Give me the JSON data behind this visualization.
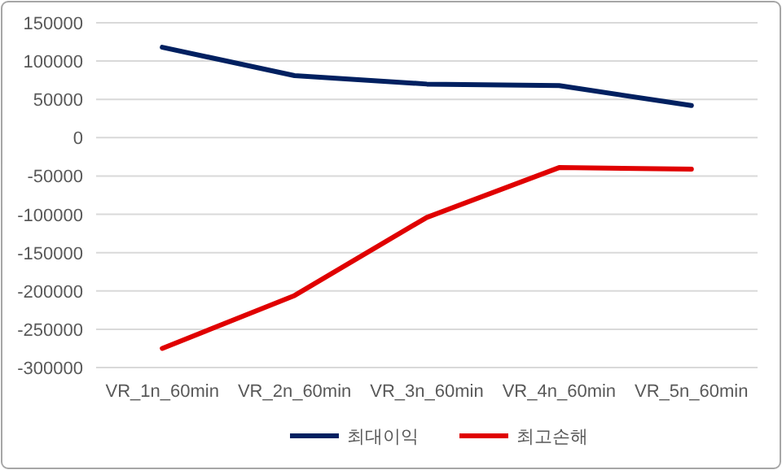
{
  "chart_data": {
    "type": "line",
    "categories": [
      "VR_1n_60min",
      "VR_2n_60min",
      "VR_3n_60min",
      "VR_4n_60min",
      "VR_5n_60min"
    ],
    "series": [
      {
        "name": "최대이익",
        "color": "#002060",
        "values": [
          118000,
          81000,
          70000,
          68000,
          42000
        ]
      },
      {
        "name": "최고손해",
        "color": "#e00000",
        "values": [
          -275000,
          -206000,
          -104000,
          -39000,
          -41000
        ]
      }
    ],
    "ylim": [
      -300000,
      150000
    ],
    "yticks": [
      -300000,
      -250000,
      -200000,
      -150000,
      -100000,
      -50000,
      0,
      50000,
      100000,
      150000
    ],
    "grid": "y",
    "legend": "bottom",
    "marker": "none",
    "line_style": "solid"
  }
}
